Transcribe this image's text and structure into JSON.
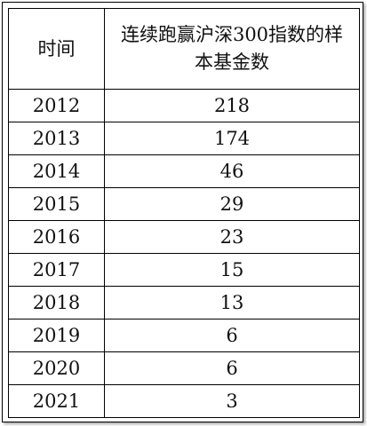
{
  "table": {
    "headers": [
      "时间",
      "连续跑赢沪深300指数的样本基金数"
    ],
    "rows": [
      {
        "year": "2012",
        "count": "218"
      },
      {
        "year": "2013",
        "count": "174"
      },
      {
        "year": "2014",
        "count": "46"
      },
      {
        "year": "2015",
        "count": "29"
      },
      {
        "year": "2016",
        "count": "23"
      },
      {
        "year": "2017",
        "count": "15"
      },
      {
        "year": "2018",
        "count": "13"
      },
      {
        "year": "2019",
        "count": "6"
      },
      {
        "year": "2020",
        "count": "6"
      },
      {
        "year": "2021",
        "count": "3"
      }
    ]
  }
}
